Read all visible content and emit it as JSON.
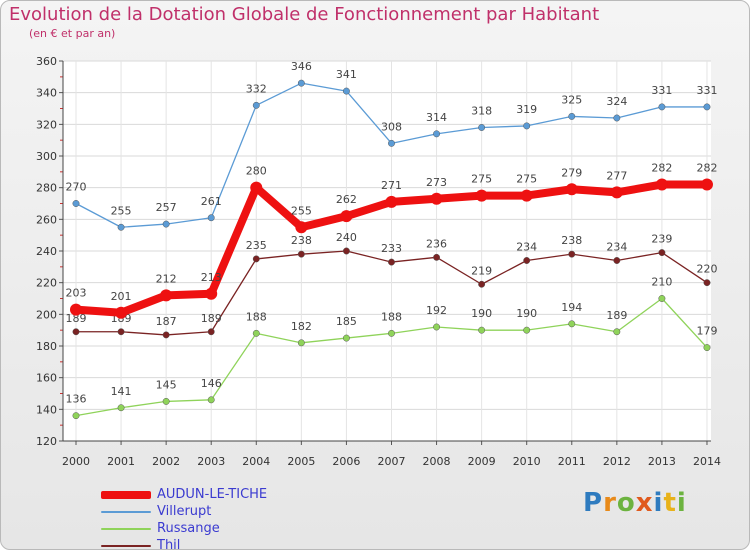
{
  "title": "Evolution de la Dotation Globale de Fonctionnement par Habitant",
  "subtitle": "(en € et par an)",
  "brand": {
    "text": "Proxiti",
    "letters": [
      {
        "ch": "P",
        "color": "#2e7bbf"
      },
      {
        "ch": "r",
        "color": "#e88a1a"
      },
      {
        "ch": "o",
        "color": "#6cb33f"
      },
      {
        "ch": "x",
        "color": "#e05a1e"
      },
      {
        "ch": "i",
        "color": "#2e7bbf"
      },
      {
        "ch": "t",
        "color": "#e8b21a"
      },
      {
        "ch": "i",
        "color": "#6cb33f"
      }
    ]
  },
  "chart_data": {
    "type": "line",
    "title": "Evolution de la Dotation Globale de Fonctionnement par Habitant",
    "ylabel": "(en € et par an)",
    "x": [
      "2000",
      "2001",
      "2002",
      "2003",
      "2004",
      "2005",
      "2006",
      "2007",
      "2008",
      "2009",
      "2010",
      "2011",
      "2012",
      "2013",
      "2014"
    ],
    "yticks": [
      120,
      140,
      160,
      180,
      200,
      220,
      240,
      260,
      280,
      300,
      320,
      340,
      360
    ],
    "ylim": [
      120,
      360
    ],
    "grid": true,
    "legend_position": "bottom-left",
    "series": [
      {
        "name": "AUDUN-LE-TICHE",
        "color": "#ee1111",
        "values": [
          203,
          201,
          212,
          213,
          280,
          255,
          262,
          271,
          273,
          275,
          275,
          279,
          277,
          282,
          282
        ]
      },
      {
        "name": "Villerupt",
        "color": "#5b9bd5",
        "values": [
          270,
          255,
          257,
          261,
          332,
          346,
          341,
          308,
          314,
          318,
          319,
          325,
          324,
          331,
          331
        ]
      },
      {
        "name": "Russange",
        "color": "#8fd35a",
        "values": [
          136,
          141,
          145,
          146,
          188,
          182,
          185,
          188,
          192,
          190,
          190,
          194,
          189,
          210,
          179
        ]
      },
      {
        "name": "Thil",
        "color": "#7a2323",
        "values": [
          189,
          189,
          187,
          189,
          235,
          238,
          240,
          233,
          236,
          219,
          234,
          238,
          234,
          239,
          220
        ]
      }
    ]
  }
}
